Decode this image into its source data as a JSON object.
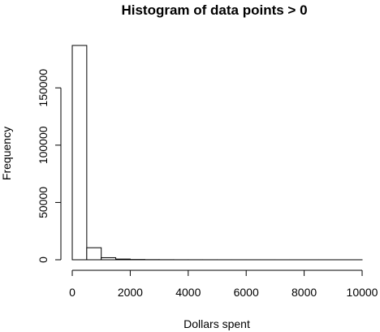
{
  "chart_data": {
    "type": "bar",
    "title": "Histogram of data points > 0",
    "xlabel": "Dollars spent",
    "ylabel": "Frequency",
    "bin_edges": [
      0,
      500,
      1000,
      1500,
      2000,
      2500,
      3000,
      3500,
      4000,
      4500,
      5000,
      5500,
      6000,
      6500,
      7000,
      7500,
      8000,
      8500,
      9000,
      9500,
      10000
    ],
    "values": [
      187000,
      10500,
      1800,
      600,
      250,
      120,
      70,
      40,
      30,
      20,
      15,
      10,
      8,
      6,
      5,
      4,
      3,
      3,
      2,
      2
    ],
    "xlim": [
      0,
      10000
    ],
    "ylim": [
      0,
      187000
    ],
    "xticks": [
      0,
      2000,
      4000,
      6000,
      8000,
      10000
    ],
    "xtick_labels": [
      "0",
      "2000",
      "4000",
      "6000",
      "8000",
      "10000"
    ],
    "yticks": [
      0,
      50000,
      100000,
      150000
    ],
    "ytick_labels": [
      "0",
      "50000",
      "100000",
      "150000"
    ],
    "grid": false
  }
}
